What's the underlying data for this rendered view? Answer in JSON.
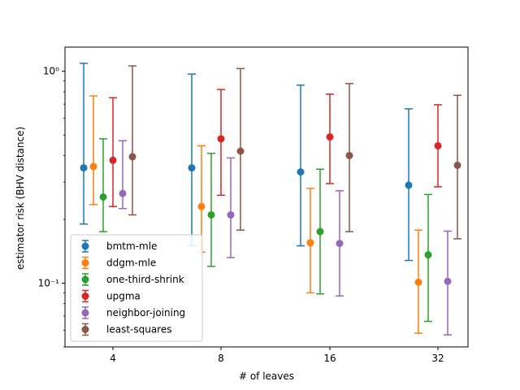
{
  "chart_data": {
    "type": "scatter",
    "subtype": "errorbar",
    "title": "",
    "xlabel": "# of leaves",
    "ylabel": "estimator risk (BHV distance)",
    "categories": [
      "4",
      "8",
      "16",
      "32"
    ],
    "yscale": "log",
    "ylim": [
      0.05,
      1.3
    ],
    "y_tick_labels": [
      "10⁻¹",
      "10⁰"
    ],
    "y_tick_values": [
      0.1,
      1
    ],
    "grid": false,
    "legend_position": "lower-left",
    "series": [
      {
        "name": "bmtm-mle",
        "color": "#1f77b4",
        "points": [
          {
            "x": "4",
            "y": 0.35,
            "low": 0.19,
            "high": 1.09
          },
          {
            "x": "8",
            "y": 0.35,
            "low": 0.15,
            "high": 0.97
          },
          {
            "x": "16",
            "y": 0.335,
            "low": 0.15,
            "high": 0.86
          },
          {
            "x": "32",
            "y": 0.29,
            "low": 0.128,
            "high": 0.665
          }
        ]
      },
      {
        "name": "ddgm-mle",
        "color": "#ff7f0e",
        "points": [
          {
            "x": "4",
            "y": 0.355,
            "low": 0.235,
            "high": 0.765
          },
          {
            "x": "8",
            "y": 0.23,
            "low": 0.14,
            "high": 0.445
          },
          {
            "x": "16",
            "y": 0.155,
            "low": 0.09,
            "high": 0.28
          },
          {
            "x": "32",
            "y": 0.101,
            "low": 0.058,
            "high": 0.178
          }
        ]
      },
      {
        "name": "one-third-shrink",
        "color": "#2ca02c",
        "points": [
          {
            "x": "4",
            "y": 0.255,
            "low": 0.175,
            "high": 0.48
          },
          {
            "x": "8",
            "y": 0.21,
            "low": 0.12,
            "high": 0.41
          },
          {
            "x": "16",
            "y": 0.175,
            "low": 0.089,
            "high": 0.345
          },
          {
            "x": "32",
            "y": 0.136,
            "low": 0.066,
            "high": 0.262
          }
        ]
      },
      {
        "name": "upgma",
        "color": "#d62728",
        "points": [
          {
            "x": "4",
            "y": 0.38,
            "low": 0.23,
            "high": 0.75
          },
          {
            "x": "8",
            "y": 0.48,
            "low": 0.26,
            "high": 0.82
          },
          {
            "x": "16",
            "y": 0.49,
            "low": 0.295,
            "high": 0.78
          },
          {
            "x": "32",
            "y": 0.445,
            "low": 0.285,
            "high": 0.695
          }
        ]
      },
      {
        "name": "neighbor-joining",
        "color": "#9467bd",
        "points": [
          {
            "x": "4",
            "y": 0.265,
            "low": 0.225,
            "high": 0.47
          },
          {
            "x": "8",
            "y": 0.21,
            "low": 0.132,
            "high": 0.39
          },
          {
            "x": "16",
            "y": 0.154,
            "low": 0.087,
            "high": 0.273
          },
          {
            "x": "32",
            "y": 0.102,
            "low": 0.057,
            "high": 0.176
          }
        ]
      },
      {
        "name": "least-squares",
        "color": "#8c564b",
        "points": [
          {
            "x": "4",
            "y": 0.395,
            "low": 0.21,
            "high": 1.06
          },
          {
            "x": "8",
            "y": 0.42,
            "low": 0.178,
            "high": 1.03
          },
          {
            "x": "16",
            "y": 0.4,
            "low": 0.175,
            "high": 0.875
          },
          {
            "x": "32",
            "y": 0.36,
            "low": 0.162,
            "high": 0.77
          }
        ]
      }
    ]
  }
}
